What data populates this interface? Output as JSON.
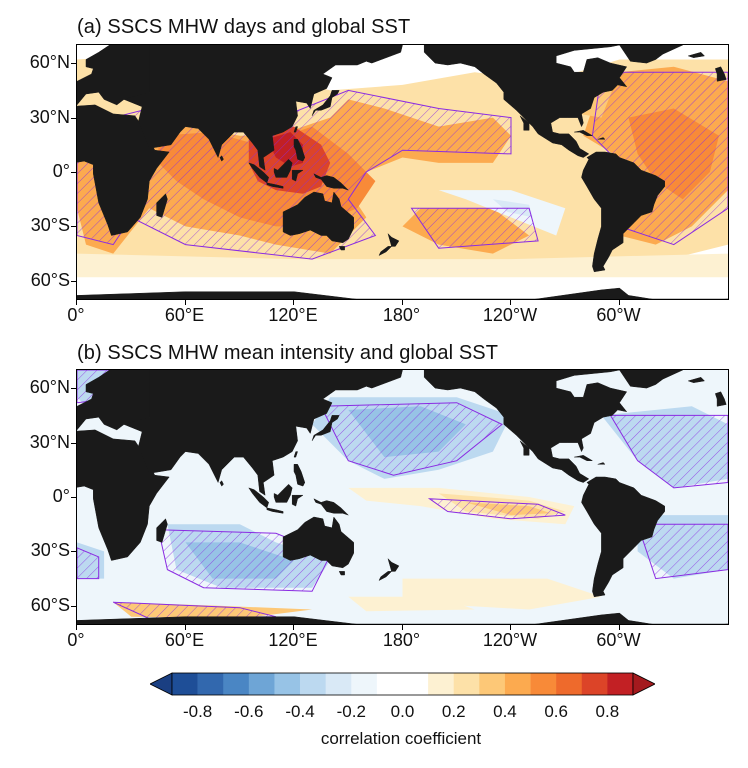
{
  "panels": [
    {
      "id": "a",
      "title": "(a) SSCS MHW days and global SST",
      "lat_labels": [
        "60°N",
        "30°N",
        "0°",
        "30°S",
        "60°S"
      ],
      "lat_values": [
        60,
        30,
        0,
        -30,
        -60
      ],
      "lon_labels": [
        "0°",
        "60°E",
        "120°E",
        "180°",
        "120°W",
        "60°W"
      ],
      "lon_values": [
        0,
        60,
        120,
        180,
        240,
        300
      ],
      "lat_range": [
        -70,
        70
      ]
    },
    {
      "id": "b",
      "title": "(b) SSCS MHW mean intensity and global SST",
      "lat_labels": [
        "60°N",
        "30°N",
        "0°",
        "30°S",
        "60°S"
      ],
      "lat_values": [
        60,
        30,
        0,
        -30,
        -60
      ],
      "lon_labels": [
        "0°",
        "60°E",
        "120°E",
        "180°",
        "120°W",
        "60°W"
      ],
      "lon_values": [
        0,
        60,
        120,
        180,
        240,
        300
      ],
      "lat_range": [
        -70,
        70
      ]
    }
  ],
  "colorbar": {
    "title": "correlation coefficient",
    "tick_labels": [
      "-0.8",
      "-0.6",
      "-0.4",
      "-0.2",
      "0.0",
      "0.2",
      "0.4",
      "0.6",
      "0.8"
    ],
    "tick_values": [
      -0.8,
      -0.6,
      -0.4,
      -0.2,
      0.0,
      0.2,
      0.4,
      0.6,
      0.8
    ],
    "range": [
      -0.9,
      0.9
    ],
    "colors": [
      "#1e4e97",
      "#3268ae",
      "#4a86c4",
      "#6ea5d6",
      "#97c3e6",
      "#bcd9f0",
      "#d9e9f6",
      "#eef6fb",
      "#ffffff",
      "#ffffff",
      "#fdf1d2",
      "#fde1a8",
      "#fdc877",
      "#fcaa4f",
      "#f88a38",
      "#ee6a2c",
      "#dc4428",
      "#c22024"
    ],
    "under_color": "#1a3f82",
    "over_color": "#a41a1e"
  },
  "colors": {
    "land": "#1a1a1a",
    "hatch_contour": "#8a2be2",
    "ocean_background": "#ffffff"
  }
}
